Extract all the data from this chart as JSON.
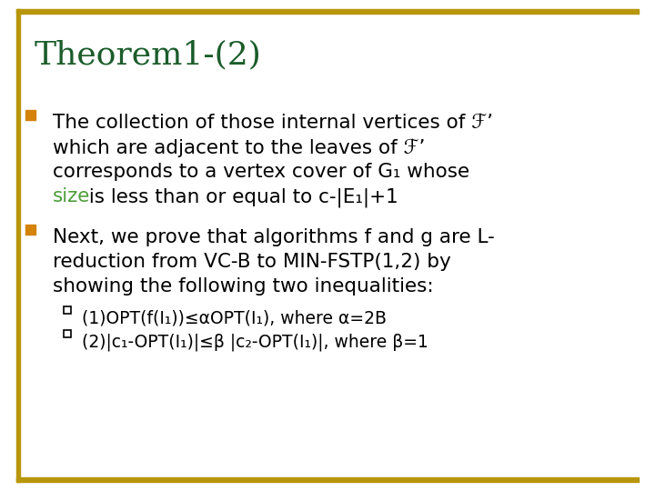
{
  "background_color": "#ffffff",
  "border_color": "#b8960c",
  "title": "Theorem1-(2)",
  "title_color": "#1a5c2a",
  "title_fontsize": 26,
  "bullet_color": "#d4820a",
  "text_color": "#000000",
  "green_color": "#4d9e3a",
  "body_fontsize": 15.5,
  "sub_fontsize": 13.5,
  "bullet1_line1": "The collection of those internal vertices of ℱ’",
  "bullet1_line2": "which are adjacent to the leaves of ℱ’",
  "bullet1_line3": "corresponds to a vertex cover of G₁ whose",
  "bullet1_line4_green": "size",
  "bullet1_line4_black": " is less than or equal to c-|E₁|+1",
  "bullet2_line1": "Next, we prove that algorithms f and g are L-",
  "bullet2_line2": "reduction from VC-B to MIN-FSTP(1,2) by",
  "bullet2_line3": "showing the following two inequalities:",
  "sub1": "(1)OPT(f(I₁))≤αOPT(I₁), where α=2B",
  "sub2": "(2)|c₁-OPT(I₁)|≤β |c₂-OPT(I₁)|, where β=1"
}
